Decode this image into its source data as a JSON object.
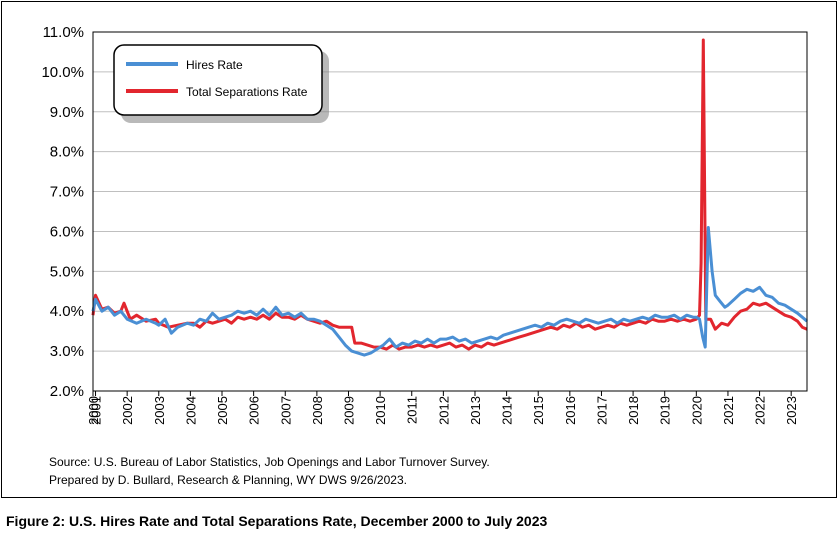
{
  "caption": "Figure 2: U.S. Hires Rate and Total Separations Rate, December 2000 to July 2023",
  "source_lines": [
    "Source: U.S. Bureau of Labor Statistics, Job Openings and Labor Turnover Survey.",
    "Prepared by D. Bullard, Research & Planning, WY DWS 9/26/2023."
  ],
  "chart_data": {
    "type": "line",
    "title": "",
    "xlabel": "",
    "ylabel": "",
    "ylim": [
      2.0,
      11.0
    ],
    "y_ticks": [
      "2.0%",
      "3.0%",
      "4.0%",
      "5.0%",
      "6.0%",
      "7.0%",
      "8.0%",
      "9.0%",
      "10.0%",
      "11.0%"
    ],
    "x_ticks": [
      "2000",
      "2001",
      "2002",
      "2003",
      "2004",
      "2005",
      "2006",
      "2007",
      "2008",
      "2009",
      "2010",
      "2011",
      "2012",
      "2013",
      "2014",
      "2015",
      "2016",
      "2017",
      "2018",
      "2019",
      "2020",
      "2021",
      "2022",
      "2023"
    ],
    "x_range": [
      2000.92,
      2023.5
    ],
    "grid": "horizontal",
    "legend_position": "top-left",
    "series": [
      {
        "name": "Hires Rate",
        "color": "#4a8fd4",
        "points": [
          [
            2000.92,
            4.0
          ],
          [
            2001.0,
            4.3
          ],
          [
            2001.2,
            4.0
          ],
          [
            2001.4,
            4.1
          ],
          [
            2001.6,
            3.9
          ],
          [
            2001.8,
            4.0
          ],
          [
            2002.0,
            3.8
          ],
          [
            2002.3,
            3.7
          ],
          [
            2002.6,
            3.8
          ],
          [
            2002.9,
            3.7
          ],
          [
            2003.0,
            3.65
          ],
          [
            2003.2,
            3.8
          ],
          [
            2003.4,
            3.45
          ],
          [
            2003.6,
            3.6
          ],
          [
            2003.9,
            3.7
          ],
          [
            2004.1,
            3.65
          ],
          [
            2004.3,
            3.8
          ],
          [
            2004.5,
            3.75
          ],
          [
            2004.7,
            3.95
          ],
          [
            2004.9,
            3.8
          ],
          [
            2005.1,
            3.85
          ],
          [
            2005.3,
            3.9
          ],
          [
            2005.5,
            4.0
          ],
          [
            2005.7,
            3.95
          ],
          [
            2005.9,
            4.0
          ],
          [
            2006.1,
            3.9
          ],
          [
            2006.3,
            4.05
          ],
          [
            2006.5,
            3.9
          ],
          [
            2006.7,
            4.1
          ],
          [
            2006.9,
            3.9
          ],
          [
            2007.1,
            3.95
          ],
          [
            2007.3,
            3.85
          ],
          [
            2007.5,
            3.95
          ],
          [
            2007.7,
            3.8
          ],
          [
            2007.9,
            3.8
          ],
          [
            2008.1,
            3.75
          ],
          [
            2008.3,
            3.65
          ],
          [
            2008.5,
            3.55
          ],
          [
            2008.7,
            3.35
          ],
          [
            2008.9,
            3.15
          ],
          [
            2009.1,
            3.0
          ],
          [
            2009.3,
            2.95
          ],
          [
            2009.5,
            2.9
          ],
          [
            2009.7,
            2.95
          ],
          [
            2009.9,
            3.05
          ],
          [
            2010.1,
            3.15
          ],
          [
            2010.3,
            3.3
          ],
          [
            2010.5,
            3.1
          ],
          [
            2010.7,
            3.2
          ],
          [
            2010.9,
            3.15
          ],
          [
            2011.1,
            3.25
          ],
          [
            2011.3,
            3.2
          ],
          [
            2011.5,
            3.3
          ],
          [
            2011.7,
            3.2
          ],
          [
            2011.9,
            3.3
          ],
          [
            2012.1,
            3.3
          ],
          [
            2012.3,
            3.35
          ],
          [
            2012.5,
            3.25
          ],
          [
            2012.7,
            3.3
          ],
          [
            2012.9,
            3.2
          ],
          [
            2013.1,
            3.25
          ],
          [
            2013.3,
            3.3
          ],
          [
            2013.5,
            3.35
          ],
          [
            2013.7,
            3.3
          ],
          [
            2013.9,
            3.4
          ],
          [
            2014.1,
            3.45
          ],
          [
            2014.3,
            3.5
          ],
          [
            2014.5,
            3.55
          ],
          [
            2014.7,
            3.6
          ],
          [
            2014.9,
            3.65
          ],
          [
            2015.1,
            3.6
          ],
          [
            2015.3,
            3.7
          ],
          [
            2015.5,
            3.65
          ],
          [
            2015.7,
            3.75
          ],
          [
            2015.9,
            3.8
          ],
          [
            2016.1,
            3.75
          ],
          [
            2016.3,
            3.7
          ],
          [
            2016.5,
            3.8
          ],
          [
            2016.7,
            3.75
          ],
          [
            2016.9,
            3.7
          ],
          [
            2017.1,
            3.75
          ],
          [
            2017.3,
            3.8
          ],
          [
            2017.5,
            3.7
          ],
          [
            2017.7,
            3.8
          ],
          [
            2017.9,
            3.75
          ],
          [
            2018.1,
            3.8
          ],
          [
            2018.3,
            3.85
          ],
          [
            2018.5,
            3.8
          ],
          [
            2018.7,
            3.9
          ],
          [
            2018.9,
            3.85
          ],
          [
            2019.1,
            3.85
          ],
          [
            2019.3,
            3.9
          ],
          [
            2019.5,
            3.8
          ],
          [
            2019.7,
            3.9
          ],
          [
            2019.9,
            3.85
          ],
          [
            2020.0,
            3.85
          ],
          [
            2020.1,
            3.8
          ],
          [
            2020.2,
            3.35
          ],
          [
            2020.28,
            3.1
          ],
          [
            2020.38,
            6.1
          ],
          [
            2020.5,
            5.0
          ],
          [
            2020.6,
            4.4
          ],
          [
            2020.75,
            4.25
          ],
          [
            2020.9,
            4.1
          ],
          [
            2021.0,
            4.15
          ],
          [
            2021.2,
            4.3
          ],
          [
            2021.4,
            4.45
          ],
          [
            2021.6,
            4.55
          ],
          [
            2021.8,
            4.5
          ],
          [
            2022.0,
            4.6
          ],
          [
            2022.2,
            4.4
          ],
          [
            2022.4,
            4.35
          ],
          [
            2022.6,
            4.2
          ],
          [
            2022.8,
            4.15
          ],
          [
            2023.0,
            4.05
          ],
          [
            2023.2,
            3.95
          ],
          [
            2023.35,
            3.85
          ],
          [
            2023.5,
            3.75
          ]
        ]
      },
      {
        "name": "Total Separations Rate",
        "color": "#e2262e",
        "points": [
          [
            2000.92,
            3.9
          ],
          [
            2001.0,
            4.4
          ],
          [
            2001.2,
            4.05
          ],
          [
            2001.4,
            4.1
          ],
          [
            2001.6,
            3.95
          ],
          [
            2001.8,
            4.0
          ],
          [
            2001.9,
            4.2
          ],
          [
            2002.1,
            3.8
          ],
          [
            2002.3,
            3.9
          ],
          [
            2002.6,
            3.75
          ],
          [
            2002.9,
            3.8
          ],
          [
            2003.0,
            3.7
          ],
          [
            2003.3,
            3.6
          ],
          [
            2003.6,
            3.65
          ],
          [
            2003.9,
            3.7
          ],
          [
            2004.1,
            3.7
          ],
          [
            2004.3,
            3.6
          ],
          [
            2004.5,
            3.75
          ],
          [
            2004.7,
            3.7
          ],
          [
            2004.9,
            3.75
          ],
          [
            2005.1,
            3.8
          ],
          [
            2005.3,
            3.7
          ],
          [
            2005.5,
            3.85
          ],
          [
            2005.7,
            3.8
          ],
          [
            2005.9,
            3.85
          ],
          [
            2006.1,
            3.8
          ],
          [
            2006.3,
            3.9
          ],
          [
            2006.5,
            3.8
          ],
          [
            2006.7,
            3.95
          ],
          [
            2006.9,
            3.85
          ],
          [
            2007.1,
            3.85
          ],
          [
            2007.3,
            3.8
          ],
          [
            2007.5,
            3.9
          ],
          [
            2007.7,
            3.8
          ],
          [
            2007.9,
            3.75
          ],
          [
            2008.1,
            3.7
          ],
          [
            2008.3,
            3.75
          ],
          [
            2008.5,
            3.65
          ],
          [
            2008.7,
            3.6
          ],
          [
            2008.9,
            3.6
          ],
          [
            2009.1,
            3.6
          ],
          [
            2009.2,
            3.2
          ],
          [
            2009.4,
            3.2
          ],
          [
            2009.6,
            3.15
          ],
          [
            2009.8,
            3.1
          ],
          [
            2010.0,
            3.1
          ],
          [
            2010.2,
            3.05
          ],
          [
            2010.4,
            3.15
          ],
          [
            2010.6,
            3.05
          ],
          [
            2010.8,
            3.1
          ],
          [
            2011.0,
            3.1
          ],
          [
            2011.2,
            3.15
          ],
          [
            2011.4,
            3.1
          ],
          [
            2011.6,
            3.15
          ],
          [
            2011.8,
            3.1
          ],
          [
            2012.0,
            3.15
          ],
          [
            2012.2,
            3.2
          ],
          [
            2012.4,
            3.1
          ],
          [
            2012.6,
            3.15
          ],
          [
            2012.8,
            3.05
          ],
          [
            2013.0,
            3.15
          ],
          [
            2013.2,
            3.1
          ],
          [
            2013.4,
            3.2
          ],
          [
            2013.6,
            3.15
          ],
          [
            2013.8,
            3.2
          ],
          [
            2014.0,
            3.25
          ],
          [
            2014.2,
            3.3
          ],
          [
            2014.4,
            3.35
          ],
          [
            2014.6,
            3.4
          ],
          [
            2014.8,
            3.45
          ],
          [
            2015.0,
            3.5
          ],
          [
            2015.2,
            3.55
          ],
          [
            2015.4,
            3.6
          ],
          [
            2015.6,
            3.55
          ],
          [
            2015.8,
            3.65
          ],
          [
            2016.0,
            3.6
          ],
          [
            2016.2,
            3.7
          ],
          [
            2016.4,
            3.6
          ],
          [
            2016.6,
            3.65
          ],
          [
            2016.8,
            3.55
          ],
          [
            2017.0,
            3.6
          ],
          [
            2017.2,
            3.65
          ],
          [
            2017.4,
            3.6
          ],
          [
            2017.6,
            3.7
          ],
          [
            2017.8,
            3.65
          ],
          [
            2018.0,
            3.7
          ],
          [
            2018.2,
            3.75
          ],
          [
            2018.4,
            3.7
          ],
          [
            2018.6,
            3.8
          ],
          [
            2018.8,
            3.75
          ],
          [
            2019.0,
            3.75
          ],
          [
            2019.2,
            3.8
          ],
          [
            2019.4,
            3.75
          ],
          [
            2019.6,
            3.8
          ],
          [
            2019.8,
            3.75
          ],
          [
            2020.0,
            3.8
          ],
          [
            2020.1,
            3.9
          ],
          [
            2020.15,
            5.2
          ],
          [
            2020.22,
            10.8
          ],
          [
            2020.3,
            3.8
          ],
          [
            2020.45,
            3.8
          ],
          [
            2020.6,
            3.55
          ],
          [
            2020.8,
            3.7
          ],
          [
            2021.0,
            3.65
          ],
          [
            2021.2,
            3.85
          ],
          [
            2021.4,
            4.0
          ],
          [
            2021.6,
            4.05
          ],
          [
            2021.8,
            4.2
          ],
          [
            2022.0,
            4.15
          ],
          [
            2022.2,
            4.2
          ],
          [
            2022.4,
            4.1
          ],
          [
            2022.6,
            4.0
          ],
          [
            2022.8,
            3.9
          ],
          [
            2023.0,
            3.85
          ],
          [
            2023.2,
            3.75
          ],
          [
            2023.35,
            3.6
          ],
          [
            2023.5,
            3.55
          ]
        ]
      }
    ]
  }
}
